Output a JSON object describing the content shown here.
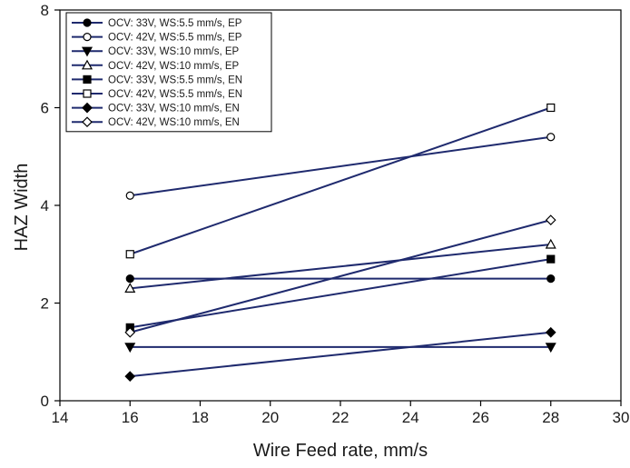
{
  "chart_data": {
    "type": "line",
    "title": "",
    "xlabel": "Wire Feed rate, mm/s",
    "ylabel": "HAZ Width",
    "xlim": [
      14,
      30
    ],
    "ylim": [
      0,
      8
    ],
    "xticks": [
      14,
      16,
      18,
      20,
      22,
      24,
      26,
      28,
      30
    ],
    "yticks": [
      0,
      2,
      4,
      6,
      8
    ],
    "grid": false,
    "legend_position": "top-left",
    "line_color": "#1f2a6e",
    "marker_color": "#000000",
    "x": [
      16,
      28
    ],
    "series": [
      {
        "name": "OCV: 33V, WS:5.5 mm/s, EP",
        "marker": "circle-filled",
        "values": [
          2.5,
          2.5
        ]
      },
      {
        "name": "OCV: 42V, WS:5.5 mm/s, EP",
        "marker": "circle-open",
        "values": [
          4.2,
          5.4
        ]
      },
      {
        "name": "OCV: 33V, WS:10 mm/s, EP",
        "marker": "triangle-down-filled",
        "values": [
          1.1,
          1.1
        ]
      },
      {
        "name": "OCV: 42V, WS:10 mm/s, EP",
        "marker": "triangle-up-open",
        "values": [
          2.3,
          3.2
        ]
      },
      {
        "name": "OCV: 33V, WS:5.5 mm/s, EN",
        "marker": "square-filled",
        "values": [
          1.5,
          2.9
        ]
      },
      {
        "name": "OCV: 42V, WS:5.5 mm/s, EN",
        "marker": "square-open",
        "values": [
          3.0,
          6.0
        ]
      },
      {
        "name": "OCV: 33V, WS:10 mm/s, EN",
        "marker": "diamond-filled",
        "values": [
          0.5,
          1.4
        ]
      },
      {
        "name": "OCV: 42V, WS:10 mm/s, EN",
        "marker": "diamond-open",
        "values": [
          1.4,
          3.7
        ]
      }
    ]
  }
}
